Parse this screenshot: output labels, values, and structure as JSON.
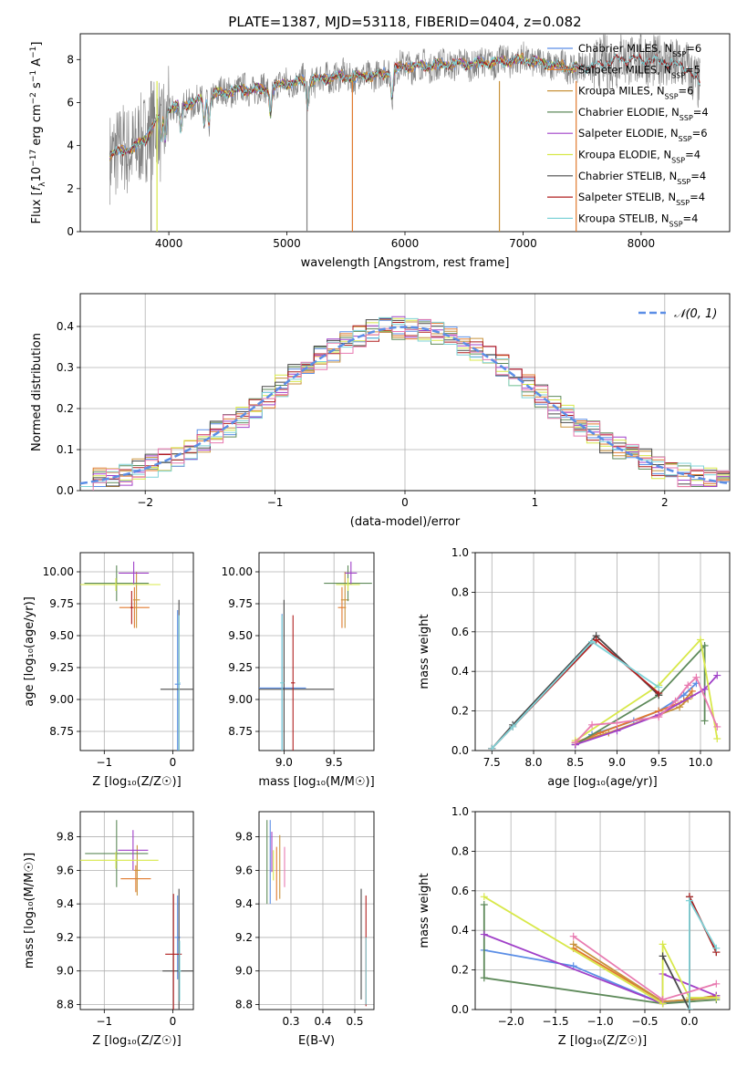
{
  "figure_title": "PLATE=1387, MJD=53118, FIBERID=0404, z=0.082",
  "colors": {
    "Chabrier MILES": "#5b8ee6",
    "Salpeter MILES": "#e07a2e",
    "Kroupa MILES": "#c8923b",
    "Chabrier ELODIE": "#5e8a5a",
    "Salpeter ELODIE": "#a040c8",
    "Kroupa ELODIE": "#d8e84a",
    "Chabrier STELIB": "#4a4a4a",
    "Salpeter STELIB": "#b01e1e",
    "Kroupa STELIB": "#7fd3d8",
    "data": "#808080",
    "normal": "#5b8ee6",
    "pink": "#e87ab0"
  },
  "chart_data": [
    {
      "type": "line",
      "id": "spectrum",
      "xlabel": "wavelength [Angstrom, rest frame]",
      "ylabel_parts": [
        "Flux [",
        "f",
        "λ",
        "10",
        "−17",
        " erg cm",
        "−2",
        " s",
        "−1",
        " A",
        "−1",
        "]"
      ],
      "xlim": [
        3250,
        8750
      ],
      "ylim": [
        0,
        9.2
      ],
      "xticks": [
        "4000",
        "5000",
        "6000",
        "7000",
        "8000"
      ],
      "yticks": [
        "0",
        "2",
        "4",
        "6",
        "8"
      ],
      "continuum": [
        [
          3500,
          3.6
        ],
        [
          3700,
          3.9
        ],
        [
          3800,
          4.3
        ],
        [
          3900,
          5.2
        ],
        [
          4000,
          5.7
        ],
        [
          4200,
          6.0
        ],
        [
          4400,
          6.4
        ],
        [
          4600,
          6.6
        ],
        [
          4800,
          6.6
        ],
        [
          5000,
          6.9
        ],
        [
          5200,
          7.0
        ],
        [
          5400,
          7.2
        ],
        [
          5600,
          7.2
        ],
        [
          5800,
          7.3
        ],
        [
          6000,
          7.7
        ],
        [
          6200,
          7.7
        ],
        [
          6400,
          7.8
        ],
        [
          6600,
          7.8
        ],
        [
          6800,
          7.9
        ],
        [
          7000,
          8.0
        ],
        [
          7200,
          7.8
        ],
        [
          7400,
          7.6
        ],
        [
          7600,
          7.7
        ],
        [
          7800,
          8.0
        ],
        [
          8000,
          8.0
        ],
        [
          8200,
          7.9
        ],
        [
          8400,
          7.6
        ],
        [
          8500,
          6.8
        ]
      ],
      "legend": [
        {
          "label": "Chabrier MILES, N",
          "sub": "SSP",
          "value": "=6"
        },
        {
          "label": "Salpeter MILES, N",
          "sub": "SSP",
          "value": "=5"
        },
        {
          "label": "Kroupa MILES, N",
          "sub": "SSP",
          "value": "=6"
        },
        {
          "label": "Chabrier ELODIE, N",
          "sub": "SSP",
          "value": "=4"
        },
        {
          "label": "Salpeter ELODIE, N",
          "sub": "SSP",
          "value": "=6"
        },
        {
          "label": "Kroupa ELODIE, N",
          "sub": "SSP",
          "value": "=4"
        },
        {
          "label": "Chabrier STELIB, N",
          "sub": "SSP",
          "value": "=4"
        },
        {
          "label": "Salpeter STELIB, N",
          "sub": "SSP",
          "value": "=4"
        },
        {
          "label": "Kroupa STELIB, N",
          "sub": "SSP",
          "value": "=4"
        }
      ]
    },
    {
      "type": "bar",
      "id": "residuals",
      "xlabel": "(data-model)/error",
      "ylabel": "Normed distribution",
      "xlim": [
        -2.5,
        2.5
      ],
      "ylim": [
        0,
        0.48
      ],
      "xticks": [
        "−2",
        "−1",
        "0",
        "1",
        "2"
      ],
      "yticks": [
        "0.0",
        "0.1",
        "0.2",
        "0.3",
        "0.4"
      ],
      "legend_label": "𝒩(0, 1)",
      "bin_width": 0.1
    },
    {
      "type": "scatter",
      "id": "age-vs-Z",
      "xlabel": "Z [log₁₀(Z/Z☉)]",
      "ylabel": "age  [log₁₀(age/yr)]",
      "xlim": [
        -1.35,
        0.3
      ],
      "ylim": [
        8.6,
        10.15
      ],
      "xticks": [
        "−1",
        "0"
      ],
      "yticks": [
        "8.75",
        "9.00",
        "9.25",
        "9.50",
        "9.75",
        "10.00"
      ],
      "points": [
        {
          "s": "Chabrier MILES",
          "x": 0.07,
          "y": 9.12,
          "xe": 0.04,
          "ye": 0.58
        },
        {
          "s": "Salpeter MILES",
          "x": -0.56,
          "y": 9.72,
          "xe": 0.22,
          "ye": 0.16
        },
        {
          "s": "Kroupa MILES",
          "x": -0.53,
          "y": 9.78,
          "xe": 0.05,
          "ye": 0.22
        },
        {
          "s": "Chabrier ELODIE",
          "x": -0.82,
          "y": 9.91,
          "xe": 0.47,
          "ye": 0.14
        },
        {
          "s": "Salpeter ELODIE",
          "x": -0.57,
          "y": 9.99,
          "xe": 0.22,
          "ye": 0.09
        },
        {
          "s": "Kroupa ELODIE",
          "x": -0.83,
          "y": 9.9,
          "xe": 0.65,
          "ye": 0.05
        },
        {
          "s": "Chabrier STELIB",
          "x": 0.09,
          "y": 9.08,
          "xe": 0.27,
          "ye": 0.7
        },
        {
          "s": "Salpeter STELIB",
          "x": -0.6,
          "y": 9.72,
          "xe": 0.02,
          "ye": 0.13
        },
        {
          "s": "Kroupa STELIB",
          "x": 0.09,
          "y": 9.13,
          "xe": 0.02,
          "ye": 0.53
        }
      ]
    },
    {
      "type": "scatter",
      "id": "age-vs-mass",
      "xlabel": "mass [log₁₀(M/M☉)]",
      "ylabel": "",
      "xlim": [
        8.75,
        9.9
      ],
      "ylim": [
        8.6,
        10.15
      ],
      "xticks": [
        "9.0",
        "9.5"
      ],
      "yticks": [
        "8.75",
        "9.00",
        "9.25",
        "9.50",
        "9.75",
        "10.00"
      ],
      "points": [
        {
          "s": "Chabrier MILES",
          "x": 8.98,
          "y": 9.09,
          "xe": 0.24,
          "ye": 0.58
        },
        {
          "s": "Salpeter MILES",
          "x": 9.58,
          "y": 9.72,
          "xe": 0.04,
          "ye": 0.16
        },
        {
          "s": "Kroupa MILES",
          "x": 9.61,
          "y": 9.78,
          "xe": 0.04,
          "ye": 0.22
        },
        {
          "s": "Chabrier ELODIE",
          "x": 9.64,
          "y": 9.91,
          "xe": 0.24,
          "ye": 0.14
        },
        {
          "s": "Salpeter ELODIE",
          "x": 9.67,
          "y": 9.99,
          "xe": 0.06,
          "ye": 0.09
        },
        {
          "s": "Kroupa ELODIE",
          "x": 9.64,
          "y": 9.9,
          "xe": 0.12,
          "ye": 0.05
        },
        {
          "s": "Chabrier STELIB",
          "x": 9.0,
          "y": 9.08,
          "xe": 0.5,
          "ye": 0.7
        },
        {
          "s": "Salpeter STELIB",
          "x": 9.09,
          "y": 9.13,
          "xe": 0.02,
          "ye": 0.53
        },
        {
          "s": "Kroupa STELIB",
          "x": 8.98,
          "y": 9.13,
          "xe": 0.02,
          "ye": 0.53
        }
      ]
    },
    {
      "type": "line",
      "id": "massweight-vs-age",
      "xlabel": "age  [log₁₀(age/yr)]",
      "ylabel": "mass weight",
      "xlim": [
        7.3,
        10.35
      ],
      "ylim": [
        0,
        1.0
      ],
      "xticks": [
        "7.5",
        "8.0",
        "8.5",
        "9.0",
        "9.5",
        "10.0"
      ],
      "yticks": [
        "0.0",
        "0.2",
        "0.4",
        "0.6",
        "0.8",
        "1.0"
      ],
      "series": [
        {
          "s": "Chabrier MILES",
          "x": [
            8.5,
            8.7,
            9.2,
            9.5,
            9.8,
            9.95
          ],
          "y": [
            0.03,
            0.08,
            0.15,
            0.2,
            0.28,
            0.34
          ]
        },
        {
          "s": "Salpeter MILES",
          "x": [
            8.5,
            8.8,
            9.5,
            9.8,
            9.9
          ],
          "y": [
            0.04,
            0.09,
            0.2,
            0.25,
            0.3
          ]
        },
        {
          "s": "Kroupa MILES",
          "x": [
            8.5,
            8.9,
            9.5,
            9.75,
            9.85,
            9.9
          ],
          "y": [
            0.04,
            0.09,
            0.18,
            0.22,
            0.26,
            0.28
          ]
        },
        {
          "s": "Chabrier ELODIE",
          "x": [
            8.5,
            9.5,
            10.05,
            10.05
          ],
          "y": [
            0.03,
            0.28,
            0.53,
            0.15
          ]
        },
        {
          "s": "Salpeter ELODIE",
          "x": [
            8.5,
            9.0,
            9.5,
            10.05,
            10.2
          ],
          "y": [
            0.03,
            0.1,
            0.18,
            0.31,
            0.38
          ]
        },
        {
          "s": "Kroupa ELODIE",
          "x": [
            8.5,
            9.5,
            10.0,
            10.2
          ],
          "y": [
            0.05,
            0.33,
            0.56,
            0.06
          ]
        },
        {
          "s": "Chabrier STELIB",
          "x": [
            7.5,
            7.75,
            8.75,
            9.5
          ],
          "y": [
            0.01,
            0.13,
            0.58,
            0.28
          ]
        },
        {
          "s": "Salpeter STELIB",
          "x": [
            7.5,
            7.75,
            8.75,
            9.5
          ],
          "y": [
            0.01,
            0.12,
            0.56,
            0.29
          ]
        },
        {
          "s": "Kroupa STELIB",
          "x": [
            7.5,
            7.75,
            8.7,
            9.5
          ],
          "y": [
            0.01,
            0.12,
            0.55,
            0.32
          ]
        },
        {
          "s": "pink",
          "x": [
            8.5,
            8.7,
            9.0,
            9.5,
            9.7,
            9.85,
            9.95,
            10.2
          ],
          "y": [
            0.04,
            0.13,
            0.14,
            0.17,
            0.25,
            0.33,
            0.37,
            0.12
          ]
        }
      ]
    },
    {
      "type": "scatter",
      "id": "mass-vs-Z",
      "xlabel": "Z [log₁₀(Z/Z☉)]",
      "ylabel": "mass [log₁₀(M/M☉)]",
      "xlim": [
        -1.35,
        0.3
      ],
      "ylim": [
        8.77,
        9.95
      ],
      "xticks": [
        "−1",
        "0"
      ],
      "yticks": [
        "8.8",
        "9.0",
        "9.2",
        "9.4",
        "9.6",
        "9.8"
      ],
      "points": [
        {
          "s": "Chabrier MILES",
          "x": 0.07,
          "y": 9.2,
          "xe": 0.04,
          "ye": 0.25
        },
        {
          "s": "Salpeter MILES",
          "x": -0.54,
          "y": 9.55,
          "xe": 0.22,
          "ye": 0.08
        },
        {
          "s": "Kroupa MILES",
          "x": -0.52,
          "y": 9.6,
          "xe": 0.05,
          "ye": 0.15
        },
        {
          "s": "Chabrier ELODIE",
          "x": -0.82,
          "y": 9.7,
          "xe": 0.46,
          "ye": 0.2
        },
        {
          "s": "Salpeter ELODIE",
          "x": -0.58,
          "y": 9.72,
          "xe": 0.22,
          "ye": 0.12
        },
        {
          "s": "Kroupa ELODIE",
          "x": -0.83,
          "y": 9.66,
          "xe": 0.62,
          "ye": 0.05
        },
        {
          "s": "Chabrier STELIB",
          "x": 0.09,
          "y": 9.0,
          "xe": 0.24,
          "ye": 0.49
        },
        {
          "s": "Salpeter STELIB",
          "x": 0.01,
          "y": 9.1,
          "xe": 0.12,
          "ye": 0.36
        },
        {
          "s": "Kroupa STELIB",
          "x": 0.1,
          "y": 9.0,
          "xe": 0.02,
          "ye": 0.18
        }
      ]
    },
    {
      "type": "scatter",
      "id": "mass-vs-EBV",
      "xlabel": "E(B-V)",
      "ylabel": "",
      "xlim": [
        0.2,
        0.56
      ],
      "ylim": [
        8.77,
        9.95
      ],
      "xticks": [
        "0.3",
        "0.4",
        "0.5"
      ],
      "yticks": [
        "8.8",
        "9.0",
        "9.2",
        "9.4",
        "9.6",
        "9.8"
      ],
      "points": [
        {
          "s": "Chabrier MILES",
          "x": 0.235,
          "y": 9.65,
          "ye": 0.25
        },
        {
          "s": "Salpeter MILES",
          "x": 0.255,
          "y": 9.58,
          "ye": 0.16
        },
        {
          "s": "Kroupa MILES",
          "x": 0.265,
          "y": 9.62,
          "ye": 0.19
        },
        {
          "s": "Chabrier ELODIE",
          "x": 0.225,
          "y": 9.65,
          "ye": 0.25
        },
        {
          "s": "Salpeter ELODIE",
          "x": 0.24,
          "y": 9.71,
          "ye": 0.12
        },
        {
          "s": "Kroupa ELODIE",
          "x": 0.245,
          "y": 9.63,
          "ye": 0.09
        },
        {
          "s": "Chabrier STELIB",
          "x": 0.52,
          "y": 9.16,
          "ye": 0.33
        },
        {
          "s": "Salpeter STELIB",
          "x": 0.535,
          "y": 9.12,
          "ye": 0.33
        },
        {
          "s": "Kroupa STELIB",
          "x": 0.535,
          "y": 9.0,
          "ye": 0.2
        },
        {
          "s": "pink",
          "x": 0.28,
          "y": 9.62,
          "ye": 0.12
        }
      ]
    },
    {
      "type": "line",
      "id": "massweight-vs-Z",
      "xlabel": "Z [log₁₀(Z/Z☉)]",
      "ylabel": "mass weight",
      "xlim": [
        -2.4,
        0.45
      ],
      "ylim": [
        0,
        1.0
      ],
      "xticks": [
        "−2.0",
        "−1.5",
        "−1.0",
        "−0.5",
        "0.0"
      ],
      "yticks": [
        "0.0",
        "0.2",
        "0.4",
        "0.6",
        "0.8",
        "1.0"
      ],
      "series": [
        {
          "s": "Chabrier MILES",
          "x": [
            -2.3,
            -1.3,
            -0.3,
            0.0,
            0.3
          ],
          "y": [
            0.3,
            0.22,
            0.03,
            0.05,
            0.07
          ]
        },
        {
          "s": "Salpeter MILES",
          "x": [
            -1.3,
            -0.3,
            0.0,
            0.3
          ],
          "y": [
            0.31,
            0.04,
            0.05,
            0.07
          ]
        },
        {
          "s": "Kroupa MILES",
          "x": [
            -1.3,
            -0.3,
            0.0,
            0.3
          ],
          "y": [
            0.33,
            0.04,
            0.05,
            0.06
          ]
        },
        {
          "s": "Chabrier ELODIE",
          "x": [
            -2.3,
            -2.3,
            -0.3,
            0.3
          ],
          "y": [
            0.53,
            0.16,
            0.03,
            0.05
          ]
        },
        {
          "s": "Salpeter ELODIE",
          "x": [
            -2.3,
            -0.3,
            -0.3,
            0.3
          ],
          "y": [
            0.38,
            0.03,
            0.18,
            0.07
          ]
        },
        {
          "s": "Kroupa ELODIE",
          "x": [
            -2.3,
            -0.3,
            -0.3,
            0.0,
            0.3
          ],
          "y": [
            0.57,
            0.03,
            0.33,
            0.06,
            0.06
          ]
        },
        {
          "s": "Chabrier STELIB",
          "x": [
            -0.3,
            0.0,
            0.0,
            0.3
          ],
          "y": [
            0.27,
            0.0,
            0.57,
            0.29
          ]
        },
        {
          "s": "Salpeter STELIB",
          "x": [
            0.0,
            0.0,
            0.3
          ],
          "y": [
            0.0,
            0.57,
            0.29
          ]
        },
        {
          "s": "Kroupa STELIB",
          "x": [
            0.0,
            0.0,
            0.3
          ],
          "y": [
            0.0,
            0.55,
            0.31
          ]
        },
        {
          "s": "pink",
          "x": [
            -1.3,
            -0.3,
            0.3
          ],
          "y": [
            0.37,
            0.05,
            0.13
          ]
        }
      ]
    }
  ]
}
